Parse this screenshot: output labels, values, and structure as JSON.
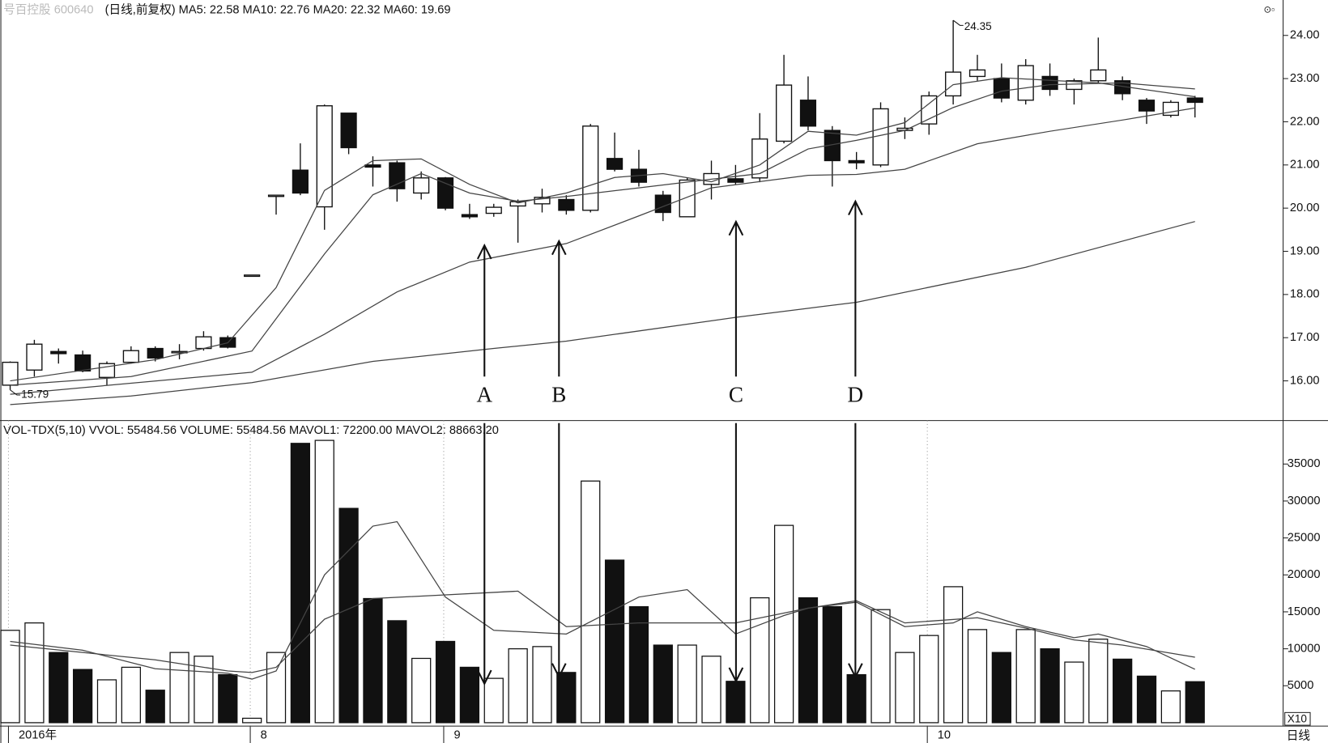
{
  "chart_data": {
    "type": "candlestick",
    "title_code": "号百控股 600640",
    "title": "(日线,前复权) MA5: 22.58 MA10: 22.76 MA20: 22.32 MA60: 19.69",
    "volume_title": "VOL-TDX(5,10) VVOL: 55484.56  VOLUME: 55484.56  MAVOL1: 72200.00  MAVOL2: 88663.20",
    "period_label": "日线",
    "volume_unit": "X10",
    "annotations": [
      "A",
      "B",
      "C",
      "D"
    ],
    "color": "#111",
    "line_color": "#444",
    "categories": [
      "2016年",
      null,
      null,
      null,
      null,
      null,
      null,
      null,
      null,
      null,
      "8",
      null,
      null,
      null,
      null,
      null,
      null,
      null,
      "9",
      null,
      null,
      null,
      null,
      null,
      null,
      null,
      null,
      null,
      null,
      null,
      null,
      null,
      null,
      null,
      null,
      null,
      null,
      null,
      "10",
      null,
      null,
      null,
      null,
      null,
      null,
      null,
      null,
      null,
      null,
      null
    ],
    "open": [
      15.9,
      16.25,
      16.68,
      16.6,
      16.08,
      16.43,
      16.75,
      16.65,
      16.75,
      17.0,
      18.45,
      20.3,
      20.88,
      20.03,
      22.2,
      21.0,
      21.05,
      20.35,
      20.7,
      19.85,
      19.88,
      20.05,
      20.1,
      20.2,
      19.95,
      21.15,
      20.9,
      20.3,
      19.8,
      20.55,
      20.68,
      20.7,
      21.55,
      22.5,
      21.8,
      21.1,
      21.0,
      21.8,
      21.95,
      22.6,
      23.05,
      23.0,
      22.5,
      23.05,
      22.75,
      22.95,
      22.95,
      22.5,
      22.15,
      22.55
    ],
    "high": [
      16.45,
      16.95,
      16.75,
      16.7,
      16.45,
      16.8,
      16.8,
      16.85,
      17.15,
      17.05,
      18.45,
      20.3,
      21.5,
      22.4,
      22.2,
      21.2,
      21.1,
      20.85,
      20.72,
      20.1,
      20.1,
      20.2,
      20.45,
      20.3,
      21.95,
      21.75,
      21.35,
      20.4,
      20.7,
      21.1,
      21.0,
      22.2,
      23.55,
      23.05,
      21.9,
      21.3,
      22.45,
      22.1,
      22.7,
      24.35,
      23.55,
      23.35,
      23.45,
      23.35,
      23.0,
      23.95,
      23.05,
      22.55,
      22.5,
      22.6
    ],
    "low": [
      15.79,
      16.1,
      16.4,
      16.2,
      15.9,
      16.4,
      16.45,
      16.5,
      16.7,
      16.75,
      18.45,
      19.85,
      20.3,
      19.5,
      21.25,
      20.5,
      20.15,
      20.2,
      19.95,
      19.75,
      19.8,
      19.2,
      19.9,
      19.85,
      19.9,
      20.85,
      20.5,
      19.7,
      19.8,
      20.2,
      20.55,
      20.6,
      21.5,
      21.8,
      20.5,
      20.9,
      20.95,
      21.6,
      21.7,
      22.4,
      22.95,
      22.45,
      22.4,
      22.6,
      22.4,
      22.9,
      22.5,
      21.95,
      22.1,
      22.1
    ],
    "close": [
      16.43,
      16.85,
      16.63,
      16.23,
      16.4,
      16.7,
      16.53,
      16.68,
      17.02,
      16.78,
      18.45,
      20.3,
      20.35,
      22.37,
      21.4,
      20.95,
      20.45,
      20.7,
      20.0,
      19.8,
      20.02,
      20.15,
      20.25,
      19.95,
      21.9,
      20.9,
      20.6,
      19.9,
      20.65,
      20.8,
      20.6,
      21.6,
      22.85,
      21.9,
      21.1,
      21.05,
      22.3,
      21.85,
      22.6,
      23.15,
      23.2,
      22.55,
      23.3,
      22.75,
      22.95,
      23.2,
      22.65,
      22.25,
      22.45,
      22.45
    ],
    "volume": [
      12500,
      13500,
      9500,
      7200,
      5800,
      7500,
      4400,
      9500,
      9000,
      6500,
      600,
      9500,
      37800,
      38200,
      29000,
      16800,
      13800,
      8700,
      11000,
      7500,
      6000,
      10000,
      10300,
      6800,
      32700,
      22000,
      15700,
      10500,
      10500,
      9000,
      5600,
      16900,
      26700,
      16900,
      15700,
      6500,
      15300,
      9500,
      11800,
      18400,
      12600,
      9500,
      12600,
      10000,
      8200,
      11300,
      8600,
      6300,
      4300,
      5548.456
    ],
    "ma_lines": [
      {
        "x": [
          0,
          6,
          9,
          11,
          13,
          15,
          17,
          19,
          21,
          23,
          25,
          27,
          29,
          31,
          33,
          35,
          37,
          39,
          41,
          43,
          45,
          49
        ],
        "values": [
          16.0,
          16.49,
          16.88,
          18.16,
          20.41,
          21.1,
          21.14,
          20.55,
          20.12,
          20.35,
          20.71,
          20.8,
          20.61,
          21.0,
          21.78,
          21.69,
          21.98,
          22.86,
          23.02,
          22.96,
          22.9,
          22.58
        ]
      },
      {
        "x": [
          0,
          5,
          10,
          13,
          15,
          17,
          19,
          21,
          23,
          26,
          29,
          31,
          33,
          35,
          37,
          39,
          41,
          43,
          46,
          49
        ],
        "values": [
          15.9,
          16.1,
          16.69,
          18.94,
          20.31,
          20.8,
          20.35,
          20.16,
          20.27,
          20.47,
          20.67,
          20.8,
          21.37,
          21.57,
          21.8,
          22.33,
          22.71,
          22.86,
          22.9,
          22.76
        ]
      },
      {
        "x": [
          0,
          10,
          13,
          16,
          19,
          23,
          26,
          29,
          33,
          35,
          37,
          40,
          43,
          46,
          49
        ],
        "values": [
          15.69,
          16.2,
          17.08,
          18.06,
          18.75,
          19.18,
          19.82,
          20.47,
          20.76,
          20.78,
          20.9,
          21.49,
          21.78,
          22.04,
          22.32
        ]
      },
      {
        "x": [
          0,
          5,
          10,
          15,
          20,
          23,
          30,
          35,
          42,
          49
        ],
        "values": [
          15.45,
          15.65,
          15.96,
          16.45,
          16.75,
          16.92,
          17.47,
          17.82,
          18.63,
          19.69
        ]
      }
    ],
    "vol_ma_lines": [
      {
        "x": [
          0,
          3,
          6,
          9,
          10,
          11,
          13,
          15,
          16,
          18,
          20,
          23,
          26,
          28,
          30,
          32,
          33,
          35,
          37,
          39,
          40,
          42,
          44,
          45,
          47,
          49
        ],
        "values": [
          11000,
          9800,
          7300,
          6700,
          5900,
          7000,
          20000,
          26600,
          27200,
          17000,
          12500,
          12000,
          17000,
          18000,
          12000,
          14500,
          15500,
          16300,
          13000,
          13500,
          15000,
          13000,
          11500,
          12000,
          10300,
          7220
        ]
      },
      {
        "x": [
          0,
          3,
          6,
          9,
          10,
          11,
          13,
          15,
          18,
          21,
          23,
          26,
          30,
          33,
          35,
          37,
          40,
          42,
          44,
          46,
          49
        ],
        "values": [
          10500,
          9500,
          8500,
          7000,
          6800,
          7500,
          14000,
          16800,
          17300,
          17800,
          13000,
          13500,
          13500,
          15500,
          16500,
          13500,
          14200,
          12800,
          11200,
          10500,
          8866.32
        ]
      }
    ],
    "ylim": [
      15.08,
      24.82
    ],
    "yticks": [
      {
        "value": 16,
        "label": "16.00"
      },
      {
        "value": 17,
        "label": "17.00"
      },
      {
        "value": 18,
        "label": "18.00"
      },
      {
        "value": 19,
        "label": "19.00"
      },
      {
        "value": 20,
        "label": "20.00"
      },
      {
        "value": 21,
        "label": "21.00"
      },
      {
        "value": 22,
        "label": "22.00"
      },
      {
        "value": 23,
        "label": "23.00"
      },
      {
        "value": 24,
        "label": "24.00"
      }
    ],
    "y2lim": [
      0,
      40880
    ],
    "y2ticks": [
      5000,
      10000,
      15000,
      20000,
      25000,
      30000,
      35000
    ]
  }
}
